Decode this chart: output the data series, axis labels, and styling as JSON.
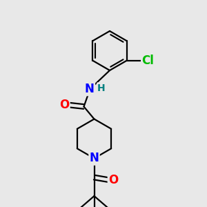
{
  "background_color": "#e8e8e8",
  "bond_color": "#000000",
  "bond_width": 1.6,
  "atom_colors": {
    "O": "#ff0000",
    "N": "#0000ff",
    "Cl": "#00bb00",
    "H": "#008080",
    "C": "#000000"
  },
  "figsize": [
    3.0,
    3.0
  ],
  "dpi": 100
}
